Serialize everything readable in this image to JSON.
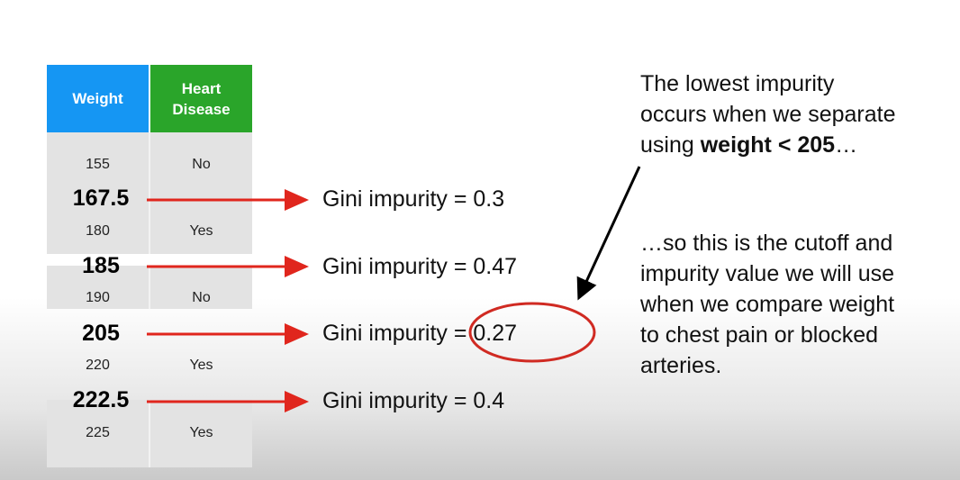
{
  "table": {
    "header_weight": "Weight",
    "header_disease": "Heart Disease",
    "rows": [
      {
        "weight": "155",
        "disease": "No"
      },
      {
        "weight": "180",
        "disease": "Yes"
      },
      {
        "weight": "190",
        "disease": "No"
      },
      {
        "weight": "220",
        "disease": "Yes"
      },
      {
        "weight": "225",
        "disease": "Yes"
      }
    ]
  },
  "cutoffs": [
    {
      "value": "167.5",
      "gini": "Gini impurity = 0.3"
    },
    {
      "value": "185",
      "gini": "Gini impurity = 0.47"
    },
    {
      "value": "205",
      "gini": "Gini impurity = 0.27"
    },
    {
      "value": "222.5",
      "gini": "Gini impurity = 0.4"
    }
  ],
  "notes": {
    "top_line1": "The lowest impurity",
    "top_line2": "occurs when we separate",
    "top_line3_pre": "using ",
    "top_line3_bold": "weight < 205",
    "top_line3_post": "…",
    "bottom_line1": "…so this is the cutoff and",
    "bottom_line2": "impurity value we will use",
    "bottom_line3": "when we compare weight",
    "bottom_line4": "to chest pain or blocked",
    "bottom_line5": "arteries."
  },
  "colors": {
    "weight_header": "#1596f3",
    "disease_header": "#2aa52a",
    "arrow": "#e0261d",
    "highlight_circle": "#d02a22"
  }
}
